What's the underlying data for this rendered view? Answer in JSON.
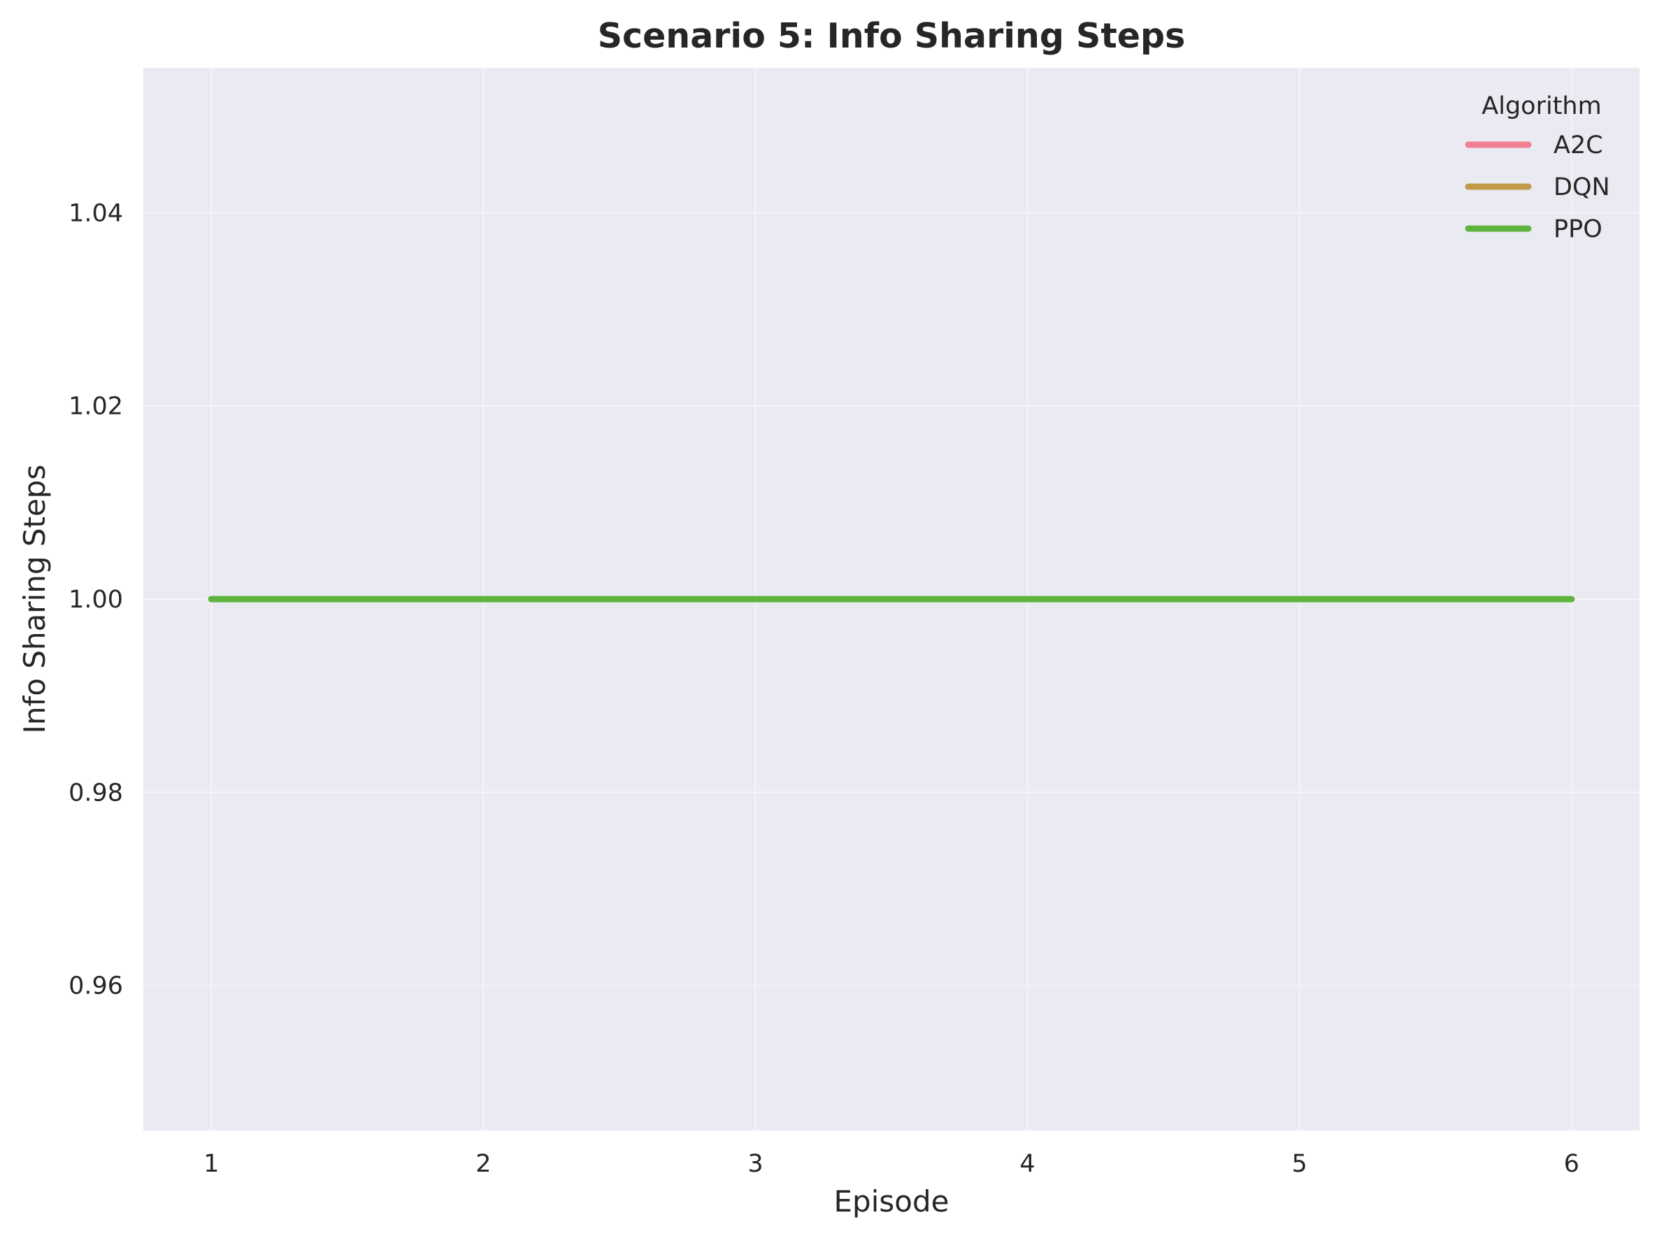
{
  "chart_data": {
    "type": "line",
    "title": "Scenario 5: Info Sharing Steps",
    "xlabel": "Episode",
    "ylabel": "Info Sharing Steps",
    "x": [
      1,
      2,
      3,
      4,
      5,
      6
    ],
    "x_ticks": [
      "1",
      "2",
      "3",
      "4",
      "5",
      "6"
    ],
    "y_ticks": [
      "0.96",
      "0.98",
      "1.00",
      "1.02",
      "1.04"
    ],
    "y_tick_values": [
      0.96,
      0.98,
      1.0,
      1.02,
      1.04
    ],
    "xlim": [
      0.75,
      6.25
    ],
    "ylim": [
      0.945,
      1.055
    ],
    "grid": true,
    "legend": {
      "title": "Algorithm",
      "placement": "top-right"
    },
    "series": [
      {
        "name": "A2C",
        "color": "#f07f90",
        "values": [
          1.0,
          1.0,
          1.0,
          1.0,
          1.0,
          1.0
        ]
      },
      {
        "name": "DQN",
        "color": "#c29b4a",
        "values": [
          1.0,
          1.0,
          1.0,
          1.0,
          1.0,
          1.0
        ]
      },
      {
        "name": "PPO",
        "color": "#5fb43e",
        "values": [
          1.0,
          1.0,
          1.0,
          1.0,
          1.0,
          1.0
        ]
      }
    ],
    "background_color": "#eaeaf2"
  }
}
